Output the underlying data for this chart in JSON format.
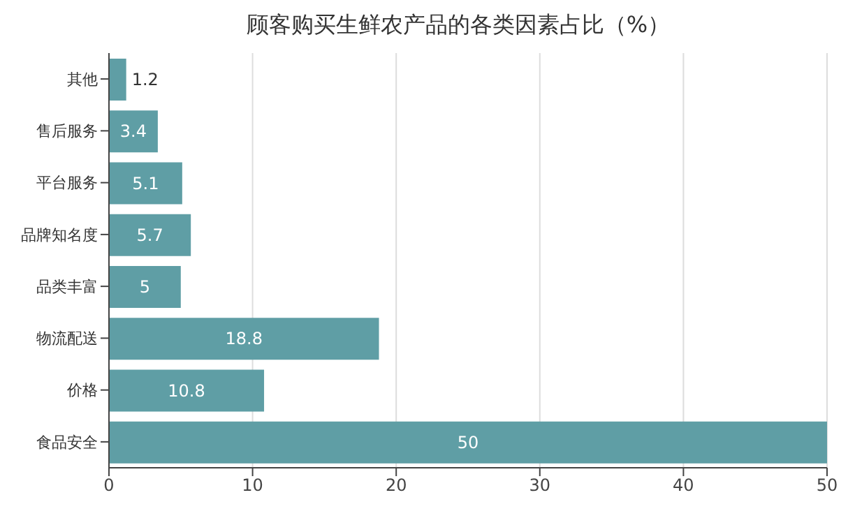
{
  "chart_data": {
    "type": "bar",
    "orientation": "horizontal",
    "title": "顾客购买生鲜农产品的各类因素占比（%）",
    "categories": [
      "其他",
      "售后服务",
      "平台服务",
      "品牌知名度",
      "品类丰富",
      "物流配送",
      "价格",
      "食品安全"
    ],
    "values": [
      1.2,
      3.4,
      5.1,
      5.7,
      5,
      18.8,
      10.8,
      50
    ],
    "color": "#5f9ea5",
    "xlim": [
      0,
      50
    ],
    "xticks": [
      0,
      10,
      20,
      30,
      40,
      50
    ],
    "grid": "x",
    "data_labels": true
  }
}
